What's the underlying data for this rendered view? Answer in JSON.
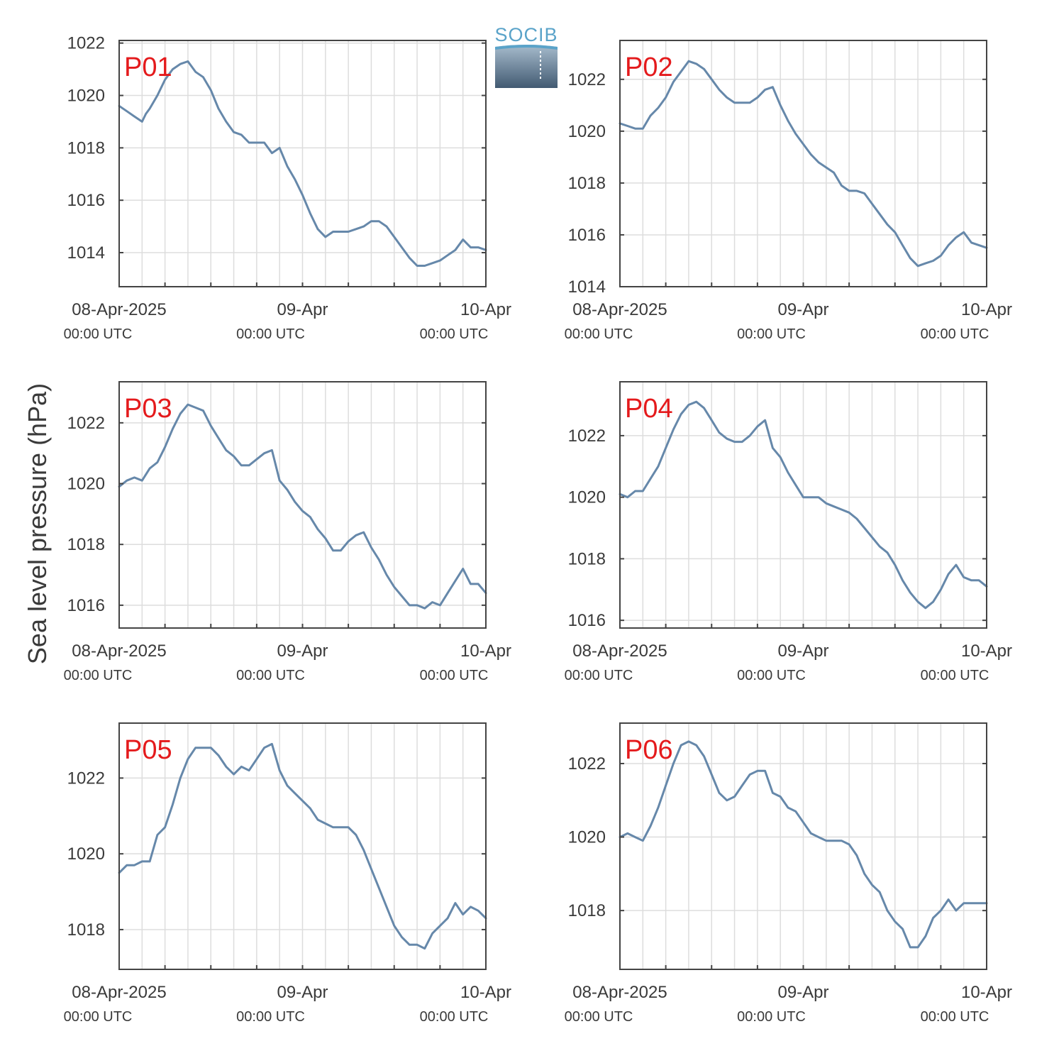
{
  "figure": {
    "ylabel": "Sea level pressure (hPa)",
    "logo_text": "SOCIB",
    "colors": {
      "line": "#6688aa",
      "grid": "#dddddd",
      "axes": "#444444",
      "panel_label": "#e41a1c",
      "text": "#3a3a3a",
      "logo": "#5aa3c9"
    }
  },
  "chart_data": [
    {
      "type": "line",
      "title": "P01",
      "xlabel": "",
      "ylabel": "Sea level pressure (hPa)",
      "xlim": [
        0,
        48
      ],
      "ylim": [
        1012.7,
        1022.1
      ],
      "yticks": [
        1014,
        1016,
        1018,
        1020,
        1022
      ],
      "xticks": [
        {
          "x": 0,
          "label": "08-Apr-2025",
          "sub": "00:00 UTC"
        },
        {
          "x": 24,
          "label": "09-Apr",
          "sub": "00:00 UTC"
        },
        {
          "x": 48,
          "label": "10-Apr",
          "sub": "00:00 UTC"
        }
      ],
      "grid": true,
      "series": [
        {
          "x": [
            0,
            1,
            2,
            3,
            3.5,
            4,
            5,
            6,
            7,
            8,
            9,
            10,
            11,
            12,
            13,
            14,
            15,
            16,
            17,
            18,
            19,
            20,
            21,
            22,
            23,
            24,
            25,
            26,
            27,
            28,
            29,
            30,
            31,
            32,
            33,
            34,
            35,
            36,
            37,
            38,
            39,
            40,
            41,
            42,
            43,
            44,
            45,
            46,
            47,
            48
          ],
          "y": [
            1019.6,
            1019.4,
            1019.2,
            1019.0,
            1019.3,
            1019.5,
            1020.0,
            1020.6,
            1021.0,
            1021.2,
            1021.3,
            1020.9,
            1020.7,
            1020.2,
            1019.5,
            1019.0,
            1018.6,
            1018.5,
            1018.2,
            1018.2,
            1018.2,
            1017.8,
            1018.0,
            1017.3,
            1016.8,
            1016.2,
            1015.5,
            1014.9,
            1014.6,
            1014.8,
            1014.8,
            1014.8,
            1014.9,
            1015.0,
            1015.2,
            1015.2,
            1015.0,
            1014.6,
            1014.2,
            1013.8,
            1013.5,
            1013.5,
            1013.6,
            1013.7,
            1013.9,
            1014.1,
            1014.5,
            1014.2,
            1014.2,
            1014.1
          ]
        }
      ]
    },
    {
      "type": "line",
      "title": "P02",
      "xlabel": "",
      "ylabel": "Sea level pressure (hPa)",
      "xlim": [
        0,
        48
      ],
      "ylim": [
        1014,
        1023.5
      ],
      "yticks": [
        1014,
        1016,
        1018,
        1020,
        1022
      ],
      "xticks": [
        {
          "x": 0,
          "label": "08-Apr-2025",
          "sub": "00:00 UTC"
        },
        {
          "x": 24,
          "label": "09-Apr",
          "sub": "00:00 UTC"
        },
        {
          "x": 48,
          "label": "10-Apr",
          "sub": "00:00 UTC"
        }
      ],
      "grid": true,
      "series": [
        {
          "x": [
            0,
            1,
            2,
            3,
            4,
            5,
            6,
            7,
            8,
            9,
            10,
            11,
            12,
            13,
            14,
            15,
            16,
            17,
            18,
            19,
            20,
            21,
            22,
            23,
            24,
            25,
            26,
            27,
            28,
            29,
            30,
            31,
            32,
            33,
            34,
            35,
            36,
            37,
            38,
            39,
            40,
            41,
            42,
            43,
            44,
            45,
            46,
            47,
            48
          ],
          "y": [
            1020.3,
            1020.2,
            1020.1,
            1020.1,
            1020.6,
            1020.9,
            1021.3,
            1021.9,
            1022.3,
            1022.7,
            1022.6,
            1022.4,
            1022.0,
            1021.6,
            1021.3,
            1021.1,
            1021.1,
            1021.1,
            1021.3,
            1021.6,
            1021.7,
            1021.0,
            1020.4,
            1019.9,
            1019.5,
            1019.1,
            1018.8,
            1018.6,
            1018.4,
            1017.9,
            1017.7,
            1017.7,
            1017.6,
            1017.2,
            1016.8,
            1016.4,
            1016.1,
            1015.6,
            1015.1,
            1014.8,
            1014.9,
            1015.0,
            1015.2,
            1015.6,
            1015.9,
            1016.1,
            1015.7,
            1015.6,
            1015.5
          ]
        }
      ]
    },
    {
      "type": "line",
      "title": "P03",
      "xlabel": "",
      "ylabel": "Sea level pressure (hPa)",
      "xlim": [
        0,
        48
      ],
      "ylim": [
        1015.25,
        1023.35
      ],
      "yticks": [
        1016,
        1018,
        1020,
        1022
      ],
      "xticks": [
        {
          "x": 0,
          "label": "08-Apr-2025",
          "sub": "00:00 UTC"
        },
        {
          "x": 24,
          "label": "09-Apr",
          "sub": "00:00 UTC"
        },
        {
          "x": 48,
          "label": "10-Apr",
          "sub": "00:00 UTC"
        }
      ],
      "grid": true,
      "series": [
        {
          "x": [
            0,
            1,
            2,
            3,
            4,
            5,
            6,
            7,
            8,
            9,
            10,
            11,
            12,
            13,
            14,
            15,
            16,
            17,
            18,
            19,
            20,
            21,
            22,
            23,
            24,
            25,
            26,
            27,
            28,
            29,
            30,
            31,
            32,
            33,
            34,
            35,
            36,
            37,
            38,
            39,
            40,
            41,
            42,
            43,
            44,
            45,
            46,
            47,
            48
          ],
          "y": [
            1019.9,
            1020.1,
            1020.2,
            1020.1,
            1020.5,
            1020.7,
            1021.2,
            1021.8,
            1022.3,
            1022.6,
            1022.5,
            1022.4,
            1021.9,
            1021.5,
            1021.1,
            1020.9,
            1020.6,
            1020.6,
            1020.8,
            1021.0,
            1021.1,
            1020.1,
            1019.8,
            1019.4,
            1019.1,
            1018.9,
            1018.5,
            1018.2,
            1017.8,
            1017.8,
            1018.1,
            1018.3,
            1018.4,
            1017.9,
            1017.5,
            1017.0,
            1016.6,
            1016.3,
            1016.0,
            1016.0,
            1015.9,
            1016.1,
            1016.0,
            1016.4,
            1016.8,
            1017.2,
            1016.7,
            1016.7,
            1016.4
          ]
        }
      ]
    },
    {
      "type": "line",
      "title": "P04",
      "xlabel": "",
      "ylabel": "Sea level pressure (hPa)",
      "xlim": [
        0,
        48
      ],
      "ylim": [
        1015.75,
        1023.75
      ],
      "yticks": [
        1016,
        1018,
        1020,
        1022
      ],
      "xticks": [
        {
          "x": 0,
          "label": "08-Apr-2025",
          "sub": "00:00 UTC"
        },
        {
          "x": 24,
          "label": "09-Apr",
          "sub": "00:00 UTC"
        },
        {
          "x": 48,
          "label": "10-Apr",
          "sub": "00:00 UTC"
        }
      ],
      "grid": true,
      "series": [
        {
          "x": [
            0,
            1,
            2,
            3,
            4,
            5,
            6,
            7,
            8,
            9,
            10,
            11,
            12,
            13,
            14,
            15,
            16,
            17,
            18,
            19,
            20,
            21,
            22,
            23,
            24,
            25,
            26,
            27,
            28,
            29,
            30,
            31,
            32,
            33,
            34,
            35,
            36,
            37,
            38,
            39,
            40,
            41,
            42,
            43,
            44,
            45,
            46,
            47,
            48
          ],
          "y": [
            1020.1,
            1020.0,
            1020.2,
            1020.2,
            1020.6,
            1021.0,
            1021.6,
            1022.2,
            1022.7,
            1023.0,
            1023.1,
            1022.9,
            1022.5,
            1022.1,
            1021.9,
            1021.8,
            1021.8,
            1022.0,
            1022.3,
            1022.5,
            1021.6,
            1021.3,
            1020.8,
            1020.4,
            1020.0,
            1020.0,
            1020.0,
            1019.8,
            1019.7,
            1019.6,
            1019.5,
            1019.3,
            1019.0,
            1018.7,
            1018.4,
            1018.2,
            1017.8,
            1017.3,
            1016.9,
            1016.6,
            1016.4,
            1016.6,
            1017.0,
            1017.5,
            1017.8,
            1017.4,
            1017.3,
            1017.3,
            1017.1
          ]
        }
      ]
    },
    {
      "type": "line",
      "title": "P05",
      "xlabel": "",
      "ylabel": "Sea level pressure (hPa)",
      "xlim": [
        0,
        48
      ],
      "ylim": [
        1016.95,
        1023.45
      ],
      "yticks": [
        1018,
        1020,
        1022
      ],
      "xticks": [
        {
          "x": 0,
          "label": "08-Apr-2025",
          "sub": "00:00 UTC"
        },
        {
          "x": 24,
          "label": "09-Apr",
          "sub": "00:00 UTC"
        },
        {
          "x": 48,
          "label": "10-Apr",
          "sub": "00:00 UTC"
        }
      ],
      "grid": true,
      "series": [
        {
          "x": [
            0,
            1,
            2,
            3,
            4,
            5,
            6,
            7,
            8,
            9,
            10,
            11,
            12,
            13,
            14,
            15,
            16,
            17,
            18,
            19,
            20,
            21,
            22,
            23,
            24,
            25,
            26,
            27,
            28,
            29,
            30,
            31,
            32,
            33,
            34,
            35,
            36,
            37,
            38,
            39,
            40,
            41,
            42,
            43,
            44,
            45,
            46,
            47,
            48
          ],
          "y": [
            1019.5,
            1019.7,
            1019.7,
            1019.8,
            1019.8,
            1020.5,
            1020.7,
            1021.3,
            1022.0,
            1022.5,
            1022.8,
            1022.8,
            1022.8,
            1022.6,
            1022.3,
            1022.1,
            1022.3,
            1022.2,
            1022.5,
            1022.8,
            1022.9,
            1022.2,
            1021.8,
            1021.6,
            1021.4,
            1021.2,
            1020.9,
            1020.8,
            1020.7,
            1020.7,
            1020.7,
            1020.5,
            1020.1,
            1019.6,
            1019.1,
            1018.6,
            1018.1,
            1017.8,
            1017.6,
            1017.6,
            1017.5,
            1017.9,
            1018.1,
            1018.3,
            1018.7,
            1018.4,
            1018.6,
            1018.5,
            1018.3
          ]
        }
      ]
    },
    {
      "type": "line",
      "title": "P06",
      "xlabel": "",
      "ylabel": "Sea level pressure (hPa)",
      "xlim": [
        0,
        48
      ],
      "ylim": [
        1016.4,
        1023.1
      ],
      "yticks": [
        1018,
        1020,
        1022
      ],
      "xticks": [
        {
          "x": 0,
          "label": "08-Apr-2025",
          "sub": "00:00 UTC"
        },
        {
          "x": 24,
          "label": "09-Apr",
          "sub": "00:00 UTC"
        },
        {
          "x": 48,
          "label": "10-Apr",
          "sub": "00:00 UTC"
        }
      ],
      "grid": true,
      "series": [
        {
          "x": [
            0,
            1,
            2,
            3,
            4,
            5,
            6,
            7,
            8,
            9,
            10,
            11,
            12,
            13,
            14,
            15,
            16,
            17,
            18,
            19,
            20,
            21,
            22,
            23,
            24,
            25,
            26,
            27,
            28,
            29,
            30,
            31,
            32,
            33,
            34,
            35,
            36,
            37,
            38,
            39,
            40,
            41,
            42,
            43,
            44,
            45,
            46,
            47,
            48
          ],
          "y": [
            1020.0,
            1020.1,
            1020.0,
            1019.9,
            1020.3,
            1020.8,
            1021.4,
            1022.0,
            1022.5,
            1022.6,
            1022.5,
            1022.2,
            1021.7,
            1021.2,
            1021.0,
            1021.1,
            1021.4,
            1021.7,
            1021.8,
            1021.8,
            1021.2,
            1021.1,
            1020.8,
            1020.7,
            1020.4,
            1020.1,
            1020.0,
            1019.9,
            1019.9,
            1019.9,
            1019.8,
            1019.5,
            1019.0,
            1018.7,
            1018.5,
            1018.0,
            1017.7,
            1017.5,
            1017.0,
            1017.0,
            1017.3,
            1017.8,
            1018.0,
            1018.3,
            1018.0,
            1018.2,
            1018.2,
            1018.2,
            1018.2
          ]
        }
      ]
    }
  ]
}
